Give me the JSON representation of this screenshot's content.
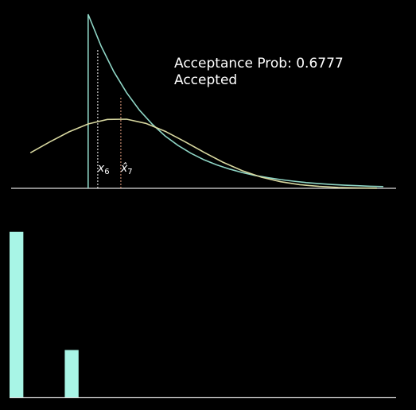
{
  "chart_data": [
    {
      "type": "line",
      "annotation": [
        "Acceptance Prob: 0.6777",
        "Accepted"
      ],
      "xlim": [
        -1.2,
        4.8
      ],
      "ylim": [
        0,
        1.05
      ],
      "series": [
        {
          "color": "#8fd6c6",
          "x": [
            0,
            0,
            0.2,
            0.4,
            0.6,
            0.8,
            1.0,
            1.2,
            1.4,
            1.6,
            1.8,
            2.0,
            2.2,
            2.4,
            2.6,
            2.8,
            3.0,
            3.2,
            3.4,
            3.6,
            3.8,
            4.0,
            4.2,
            4.4,
            4.6
          ],
          "values": [
            0,
            1,
            0.819,
            0.67,
            0.549,
            0.449,
            0.368,
            0.301,
            0.247,
            0.202,
            0.165,
            0.135,
            0.111,
            0.091,
            0.074,
            0.061,
            0.05,
            0.041,
            0.033,
            0.027,
            0.022,
            0.018,
            0.015,
            0.012,
            0.01
          ]
        },
        {
          "color": "#d8d8a0",
          "x": [
            -0.9,
            -0.6,
            -0.3,
            0,
            0.3,
            0.6,
            0.9,
            1.2,
            1.5,
            1.8,
            2.1,
            2.4,
            2.7,
            3.0,
            3.3,
            3.6,
            3.9,
            4.2,
            4.5
          ],
          "values": [
            0.204,
            0.266,
            0.324,
            0.37,
            0.396,
            0.397,
            0.373,
            0.328,
            0.27,
            0.208,
            0.15,
            0.102,
            0.064,
            0.038,
            0.021,
            0.011,
            0.005,
            0.002,
            0.001
          ]
        }
      ],
      "markers": [
        {
          "label": "x",
          "sub": "6",
          "x": 0.15,
          "value": 0.8,
          "color": "#ffffff"
        },
        {
          "label": "x̂",
          "sub": "7",
          "x": 0.51,
          "value": 0.53,
          "color": "#e8a080"
        }
      ]
    },
    {
      "type": "histogram",
      "color": "#a8f5e6",
      "bins": [
        0,
        1,
        2,
        3,
        4,
        5
      ],
      "values": [
        7,
        0,
        0,
        0,
        2
      ],
      "xlim": [
        0,
        28
      ],
      "ylim": [
        0,
        8
      ]
    }
  ]
}
